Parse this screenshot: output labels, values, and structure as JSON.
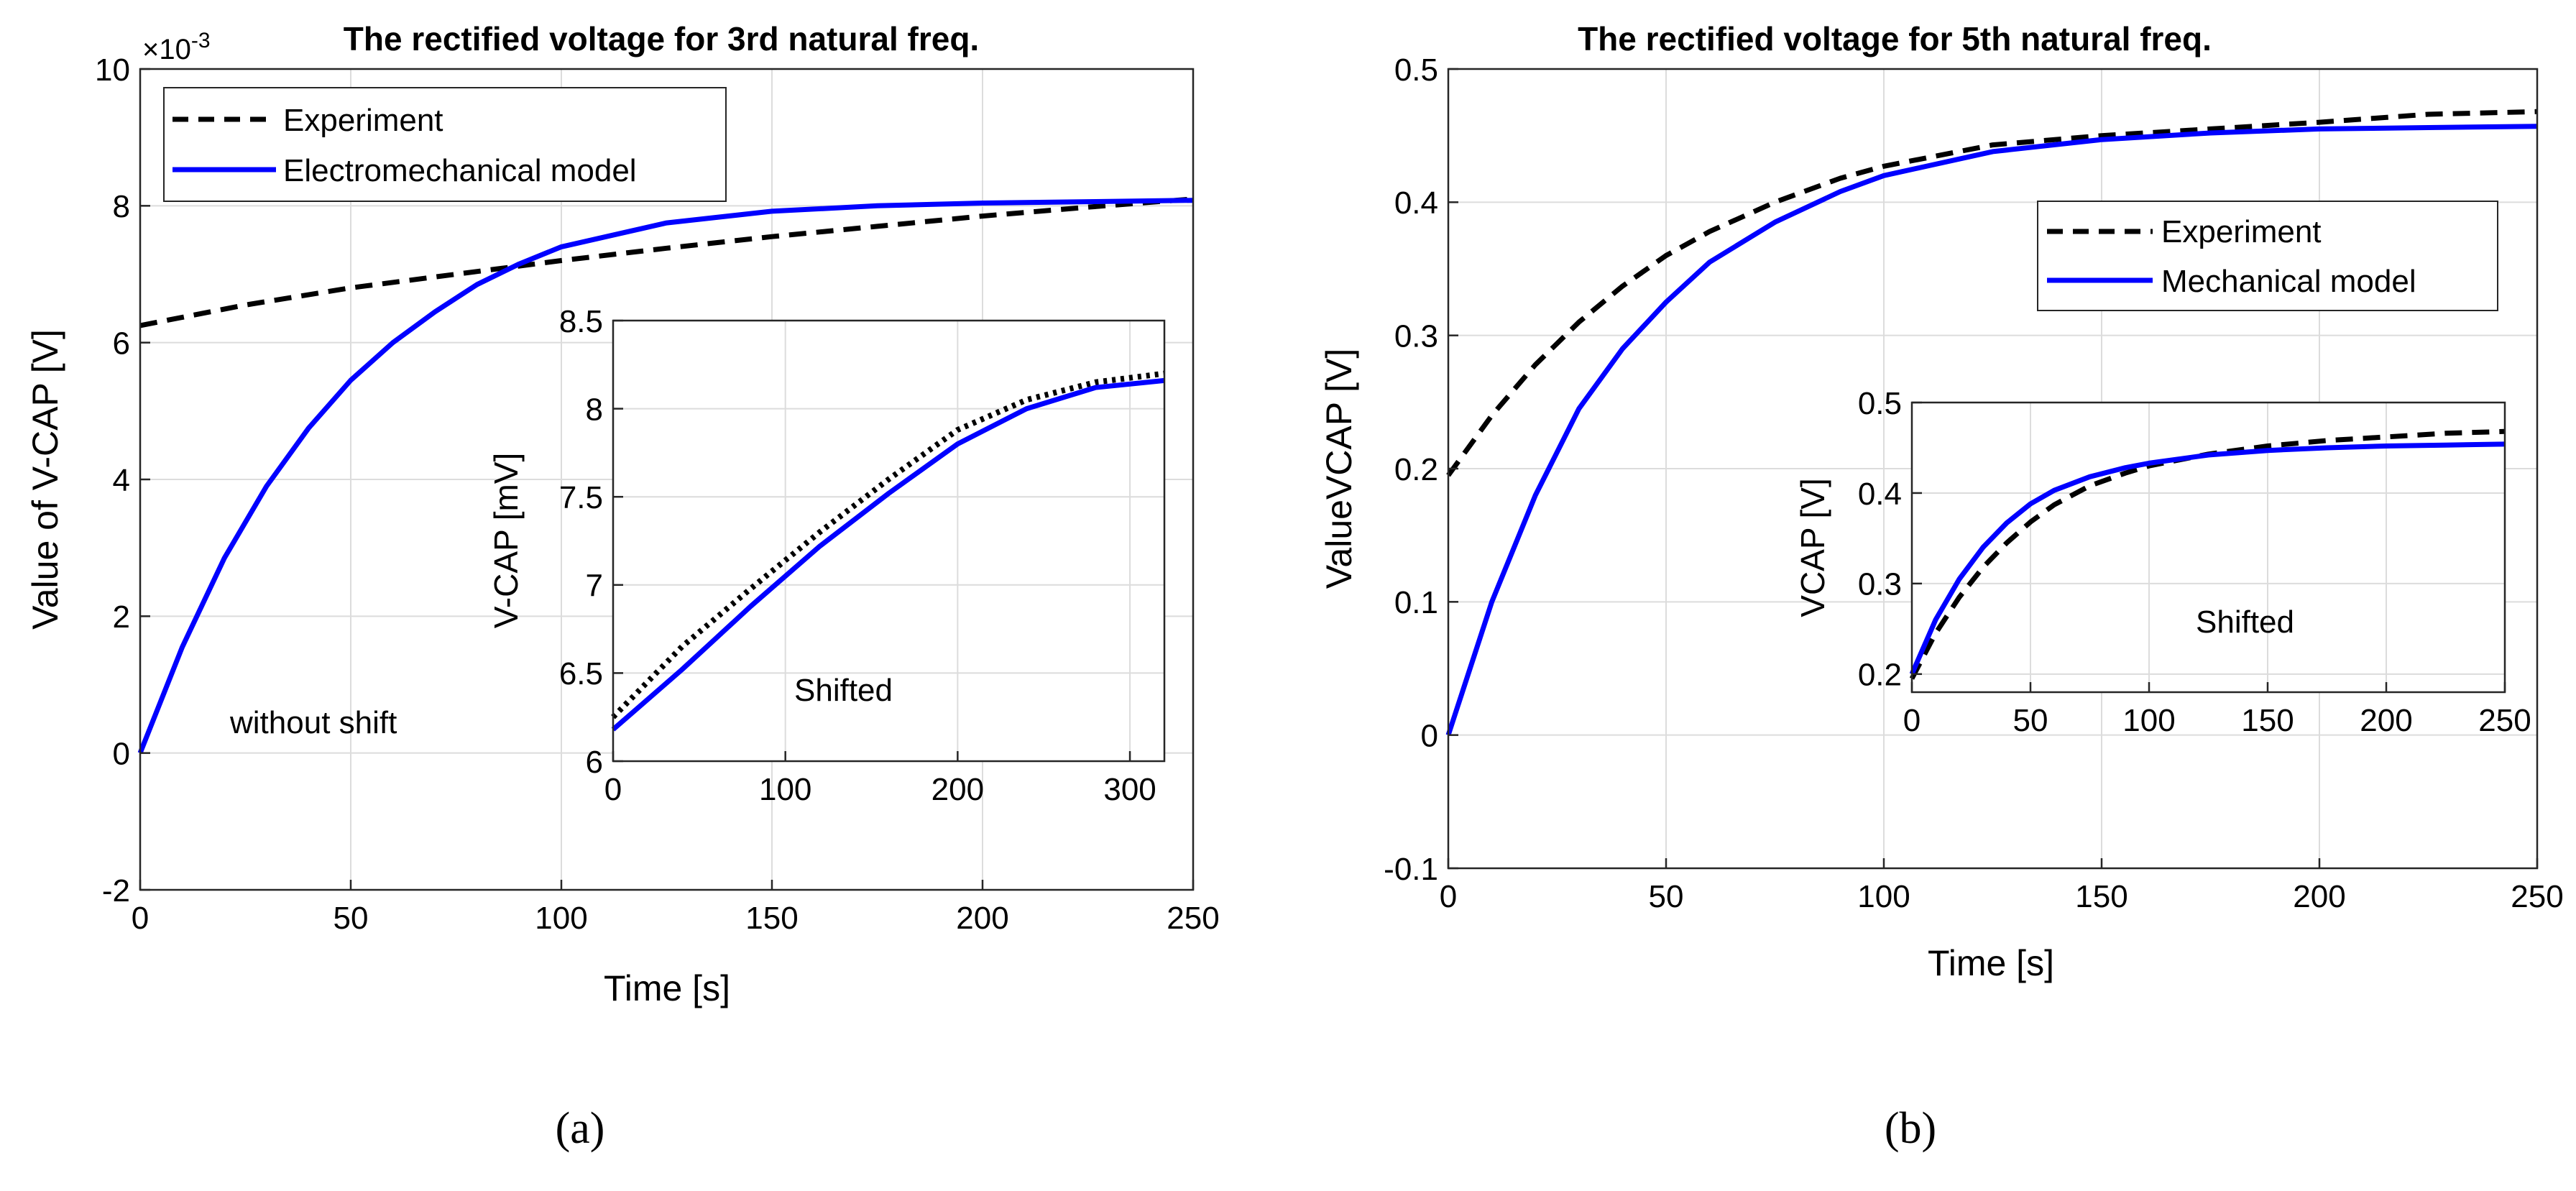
{
  "chart_data": [
    {
      "type": "line",
      "panel": "a",
      "title": "The rectified voltage for 3rd natural freq.",
      "xlabel": "Time [s]",
      "ylabel": "Value of V-CAP [V]",
      "xlim": [
        0,
        250
      ],
      "ylim": [
        -2,
        10
      ],
      "xticks": [
        "0",
        "50",
        "100",
        "150",
        "200",
        "250"
      ],
      "yticks": [
        "-2",
        "0",
        "2",
        "4",
        "6",
        "8",
        "10"
      ],
      "scale_base": "×10",
      "scale_exp": "-3",
      "grid": true,
      "legend_position": "top-left",
      "annotation": "without shift",
      "series": [
        {
          "name": "Experiment",
          "style": "dashed",
          "color": "#000000",
          "x": [
            0,
            25,
            50,
            75,
            100,
            125,
            150,
            175,
            200,
            225,
            250
          ],
          "y": [
            6.25,
            6.55,
            6.8,
            7.0,
            7.2,
            7.38,
            7.55,
            7.7,
            7.85,
            7.98,
            8.1
          ]
        },
        {
          "name": "Electromechanical model",
          "style": "solid",
          "color": "#0000ff",
          "x": [
            0,
            10,
            20,
            30,
            40,
            50,
            60,
            70,
            80,
            90,
            100,
            125,
            150,
            175,
            200,
            225,
            250
          ],
          "y": [
            0,
            1.55,
            2.85,
            3.9,
            4.75,
            5.45,
            6.0,
            6.45,
            6.85,
            7.15,
            7.4,
            7.75,
            7.92,
            8.0,
            8.04,
            8.06,
            8.08
          ]
        }
      ],
      "inset": {
        "type": "line",
        "ylabel": "V-CAP [mV]",
        "xlim": [
          0,
          320
        ],
        "ylim": [
          6,
          8.5
        ],
        "xticks": [
          "0",
          "100",
          "200",
          "300"
        ],
        "yticks": [
          "6",
          "6.5",
          "7",
          "7.5",
          "8",
          "8.5"
        ],
        "annotation": "Shifted",
        "series": [
          {
            "name": "Experiment",
            "style": "dotted",
            "color": "#000000",
            "x": [
              0,
              40,
              80,
              120,
              160,
              200,
              240,
              280,
              320
            ],
            "y": [
              6.25,
              6.65,
              6.98,
              7.3,
              7.6,
              7.88,
              8.05,
              8.15,
              8.2
            ]
          },
          {
            "name": "Electromechanical model",
            "style": "solid",
            "color": "#0000ff",
            "x": [
              0,
              40,
              80,
              120,
              160,
              200,
              240,
              280,
              320
            ],
            "y": [
              6.18,
              6.52,
              6.88,
              7.22,
              7.52,
              7.8,
              8.0,
              8.12,
              8.16
            ]
          }
        ]
      }
    },
    {
      "type": "line",
      "panel": "b",
      "title": "The rectified voltage for 5th natural freq.",
      "xlabel": "Time [s]",
      "ylabel": "ValueVCAP [V]",
      "xlim": [
        0,
        250
      ],
      "ylim": [
        -0.1,
        0.5
      ],
      "xticks": [
        "0",
        "50",
        "100",
        "150",
        "200",
        "250"
      ],
      "yticks": [
        "-0.1",
        "0",
        "0.1",
        "0.2",
        "0.3",
        "0.4",
        "0.5"
      ],
      "grid": true,
      "legend_position": "top-right",
      "series": [
        {
          "name": "Experiment",
          "style": "dashed",
          "color": "#000000",
          "x": [
            0,
            10,
            20,
            30,
            40,
            50,
            60,
            75,
            90,
            100,
            125,
            150,
            175,
            200,
            225,
            250
          ],
          "y": [
            0.195,
            0.24,
            0.278,
            0.31,
            0.337,
            0.36,
            0.378,
            0.4,
            0.418,
            0.427,
            0.443,
            0.45,
            0.455,
            0.46,
            0.466,
            0.468
          ]
        },
        {
          "name": "Mechanical model",
          "style": "solid",
          "color": "#0000ff",
          "x": [
            0,
            10,
            20,
            30,
            40,
            50,
            60,
            75,
            90,
            100,
            125,
            150,
            175,
            200,
            225,
            250
          ],
          "y": [
            0,
            0.1,
            0.18,
            0.245,
            0.29,
            0.325,
            0.355,
            0.385,
            0.408,
            0.42,
            0.438,
            0.447,
            0.452,
            0.455,
            0.456,
            0.457
          ]
        }
      ],
      "inset": {
        "type": "line",
        "ylabel": "VCAP [V]",
        "xlim": [
          0,
          250
        ],
        "ylim": [
          0.18,
          0.5
        ],
        "xticks": [
          "0",
          "50",
          "100",
          "150",
          "200",
          "250"
        ],
        "yticks": [
          "0.2",
          "0.3",
          "0.4",
          "0.5"
        ],
        "annotation": "Shifted",
        "series": [
          {
            "name": "Experiment",
            "style": "dashed",
            "color": "#000000",
            "x": [
              0,
              10,
              20,
              30,
              40,
              50,
              60,
              75,
              90,
              100,
              125,
              150,
              175,
              200,
              225,
              250
            ],
            "y": [
              0.195,
              0.245,
              0.285,
              0.318,
              0.345,
              0.368,
              0.387,
              0.408,
              0.422,
              0.43,
              0.443,
              0.452,
              0.458,
              0.462,
              0.466,
              0.468
            ]
          },
          {
            "name": "Mechanical model",
            "style": "solid",
            "color": "#0000ff",
            "x": [
              0,
              10,
              20,
              30,
              40,
              50,
              60,
              75,
              90,
              100,
              125,
              150,
              175,
              200,
              225,
              250
            ],
            "y": [
              0.2,
              0.26,
              0.305,
              0.34,
              0.367,
              0.388,
              0.403,
              0.418,
              0.428,
              0.433,
              0.442,
              0.447,
              0.45,
              0.452,
              0.453,
              0.454
            ]
          }
        ]
      }
    }
  ],
  "panel_labels": [
    "(a)",
    "(b)"
  ]
}
